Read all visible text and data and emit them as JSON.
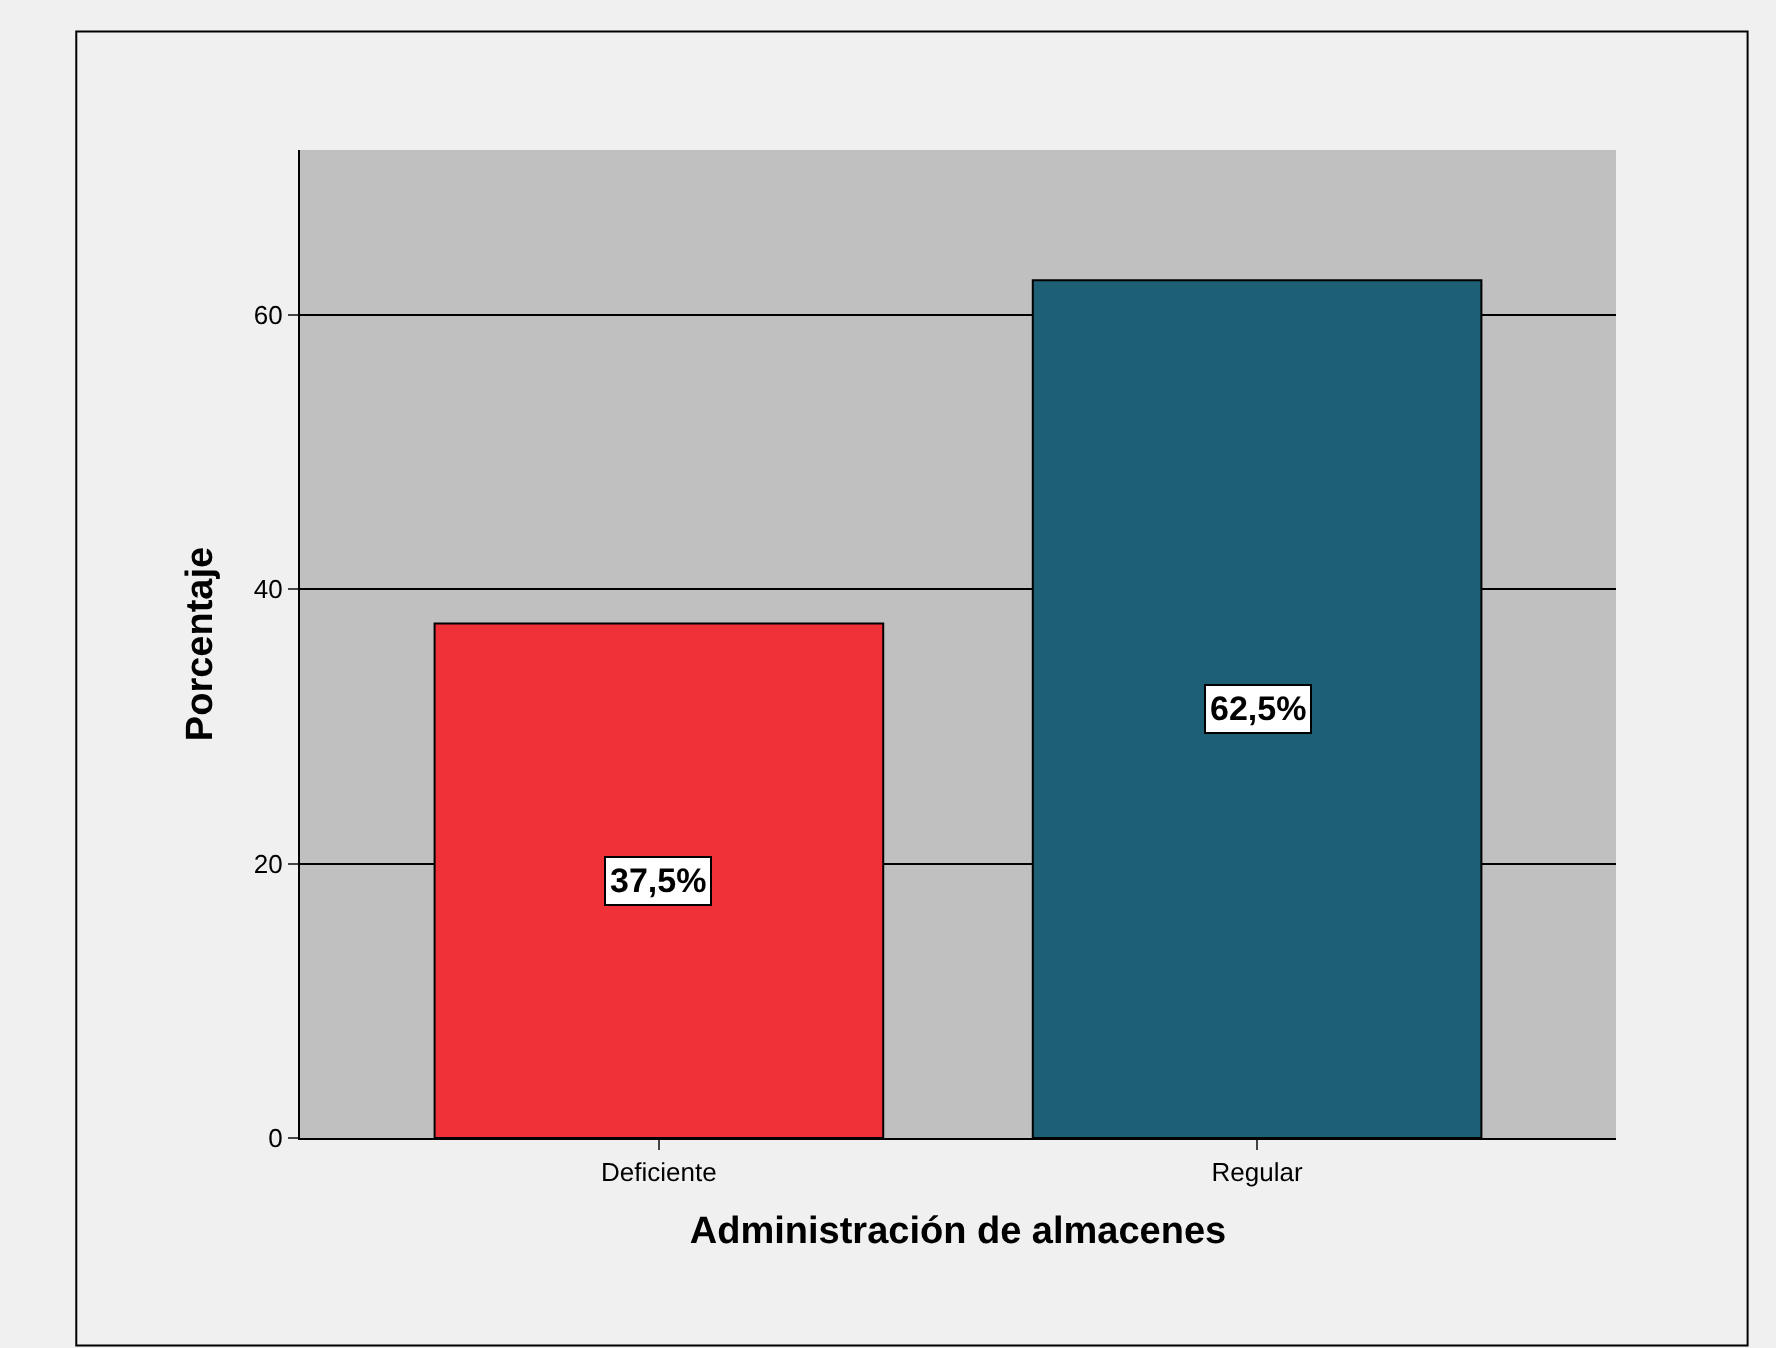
{
  "chart_data": {
    "type": "bar",
    "xlabel": "Administración de almacenes",
    "ylabel": "Porcentaje",
    "categories": [
      "Deficiente",
      "Regular"
    ],
    "values": [
      37.5,
      62.5
    ],
    "colors": [
      "#f03238",
      "#1d5f74"
    ],
    "value_labels": [
      "37,5%",
      "62,5%"
    ],
    "ylim": [
      0,
      72
    ],
    "yticks": [
      0,
      20,
      40,
      60
    ],
    "grid": "y",
    "legend": false
  }
}
